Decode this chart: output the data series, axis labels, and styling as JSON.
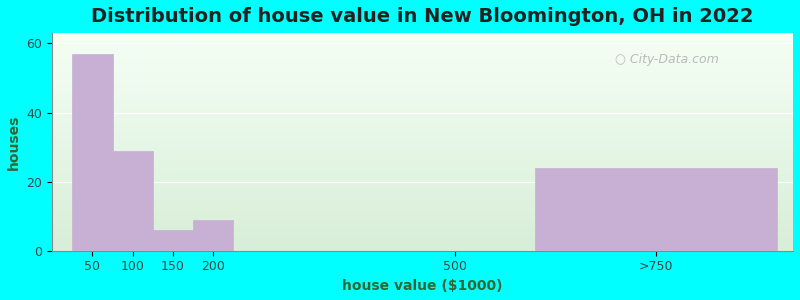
{
  "title": "Distribution of house value in New Bloomington, OH in 2022",
  "xlabel": "house value ($1000)",
  "ylabel": "houses",
  "background_color": "#00FFFF",
  "bar_color": "#c8afd4",
  "categories": [
    "50",
    "100",
    "150",
    "200",
    "500",
    ">750"
  ],
  "x_positions": [
    50,
    100,
    150,
    200,
    500,
    750
  ],
  "bar_widths": [
    50,
    50,
    50,
    50,
    200,
    300
  ],
  "values": [
    57,
    29,
    6,
    9,
    0,
    24
  ],
  "yticks": [
    0,
    20,
    40,
    60
  ],
  "ylim": [
    0,
    63
  ],
  "xlim": [
    0,
    920
  ],
  "title_fontsize": 14,
  "axis_label_fontsize": 10,
  "tick_fontsize": 9,
  "watermark_text": "City-Data.com",
  "watermark_color": "#b0b0b0",
  "grad_top_color": "#f5fff5",
  "grad_bottom_color": "#d8eed8",
  "title_color": "#222222",
  "label_color": "#336633"
}
